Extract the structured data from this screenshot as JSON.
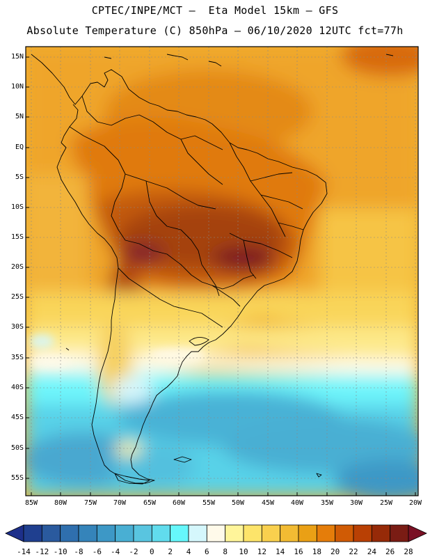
{
  "header": {
    "line1": "CPTEC/INPE/MCT –  Eta Model 15km – GFS",
    "line2": "Absolute Temperature (C) 850hPa – 06/10/2020 12UTC fct=77h"
  },
  "map": {
    "lat_labels": [
      "15N",
      "10N",
      "5N",
      "EQ",
      "5S",
      "10S",
      "15S",
      "20S",
      "25S",
      "30S",
      "35S",
      "40S",
      "45S",
      "50S",
      "55S"
    ],
    "lon_labels": [
      "85W",
      "80W",
      "75W",
      "70W",
      "65W",
      "60W",
      "55W",
      "50W",
      "45W",
      "40W",
      "35W",
      "30W",
      "25W",
      "20W"
    ],
    "extent": {
      "lon": [
        -86,
        -19
      ],
      "lat": [
        -58,
        17
      ]
    }
  },
  "colorbar": {
    "labels": [
      "-14",
      "-12",
      "-10",
      "-8",
      "-6",
      "-4",
      "-2",
      "0",
      "2",
      "4",
      "6",
      "8",
      "10",
      "12",
      "14",
      "16",
      "18",
      "20",
      "22",
      "24",
      "26",
      "28"
    ],
    "colors": [
      "#1f3f8f",
      "#2a5a9e",
      "#2f6fae",
      "#3584ba",
      "#3d98c6",
      "#49afd3",
      "#59c5e0",
      "#61dced",
      "#66f7fb",
      "#d5f7fc",
      "#fffaea",
      "#fff59a",
      "#fde46a",
      "#f9d04e",
      "#f2bb33",
      "#eaa015",
      "#e57d0a",
      "#d05b05",
      "#b94004",
      "#962a08",
      "#7a1c14"
    ],
    "under_color": "#1d2f8a",
    "over_color": "#7a1024"
  }
}
